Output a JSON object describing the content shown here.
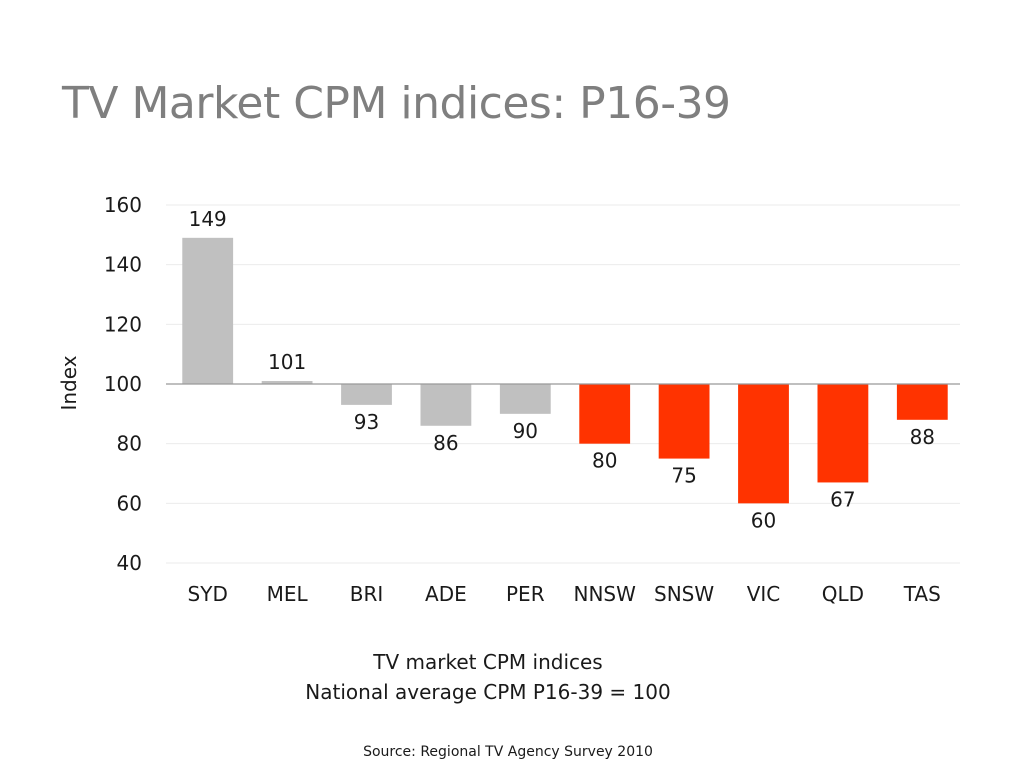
{
  "slide": {
    "title": "TV Market CPM indices: P16-39",
    "caption_line1": "TV market CPM indices",
    "caption_line2": "National average CPM P16-39 = 100",
    "source": "Source:  Regional TV Agency Survey 2010"
  },
  "colors": {
    "metro_bar": "#c0c0c0",
    "regional_bar": "#ff3300",
    "gridline": "#ebebeb",
    "baseline": "#999999",
    "title": "#7f7f7f",
    "text": "#1a1a1a"
  },
  "chart_data": {
    "type": "bar",
    "title": "",
    "xlabel": "",
    "ylabel": "Index",
    "baseline": 100,
    "ylim": [
      40,
      160
    ],
    "yticks": [
      40,
      60,
      80,
      100,
      120,
      140,
      160
    ],
    "grid": true,
    "categories": [
      "SYD",
      "MEL",
      "BRI",
      "ADE",
      "PER",
      "NNSW",
      "SNSW",
      "VIC",
      "QLD",
      "TAS"
    ],
    "values": [
      149,
      101,
      93,
      86,
      90,
      80,
      75,
      60,
      67,
      88
    ],
    "groups": [
      "metro",
      "metro",
      "metro",
      "metro",
      "metro",
      "regional",
      "regional",
      "regional",
      "regional",
      "regional"
    ]
  }
}
